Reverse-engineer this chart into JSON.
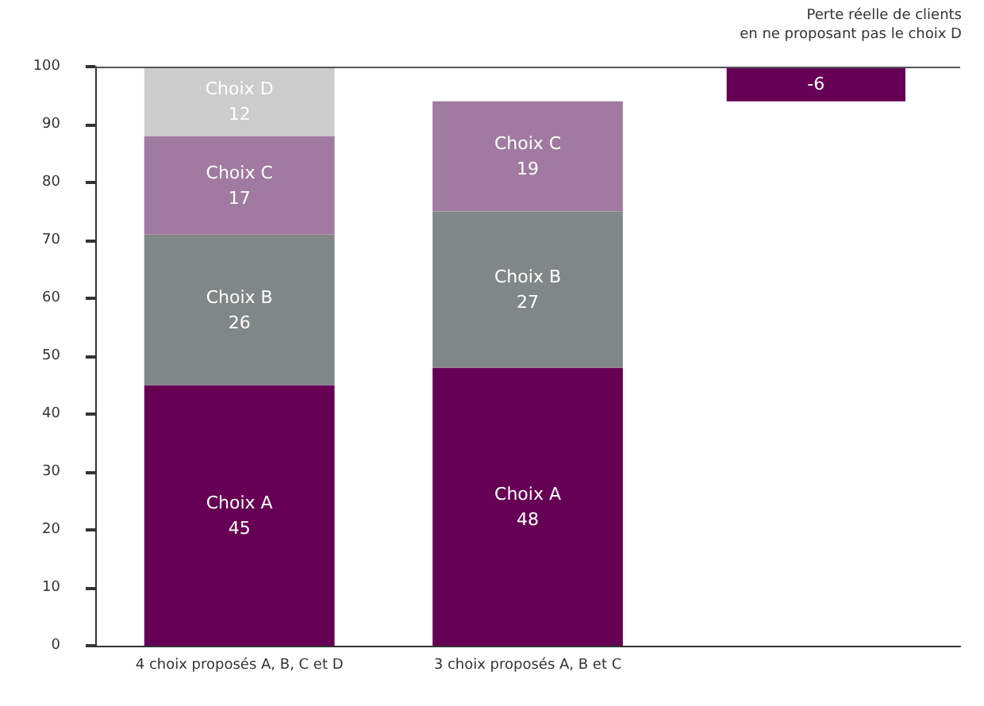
{
  "chart_data": {
    "type": "bar",
    "stacked": true,
    "categories": [
      "4 choix proposés A, B, C et D",
      "3 choix proposés A, B et C",
      null
    ],
    "series": [
      {
        "name": "Choix A",
        "color": "#660055",
        "values": [
          45,
          48,
          null
        ]
      },
      {
        "name": "Choix B",
        "color": "#808887",
        "values": [
          26,
          27,
          null
        ]
      },
      {
        "name": "Choix C",
        "color": "#a07aa0",
        "values": [
          17,
          19,
          null
        ]
      },
      {
        "name": "Choix D",
        "color": "#cccccc",
        "values": [
          12,
          null,
          null
        ]
      },
      {
        "color": "#660055",
        "values": [
          null,
          null,
          -6
        ],
        "base": [
          null,
          null,
          100
        ]
      }
    ],
    "ylim": [
      0,
      100
    ],
    "yticks": [
      0,
      10,
      20,
      30,
      40,
      50,
      60,
      70,
      80,
      90,
      100
    ],
    "ref_lines": [
      {
        "axis": "y",
        "value": 100,
        "color": "#555555"
      }
    ],
    "annotations": [
      "Perte réelle de clients\nen ne proposant pas le choix D"
    ],
    "data_labels": true,
    "grid": false,
    "legend": false
  }
}
